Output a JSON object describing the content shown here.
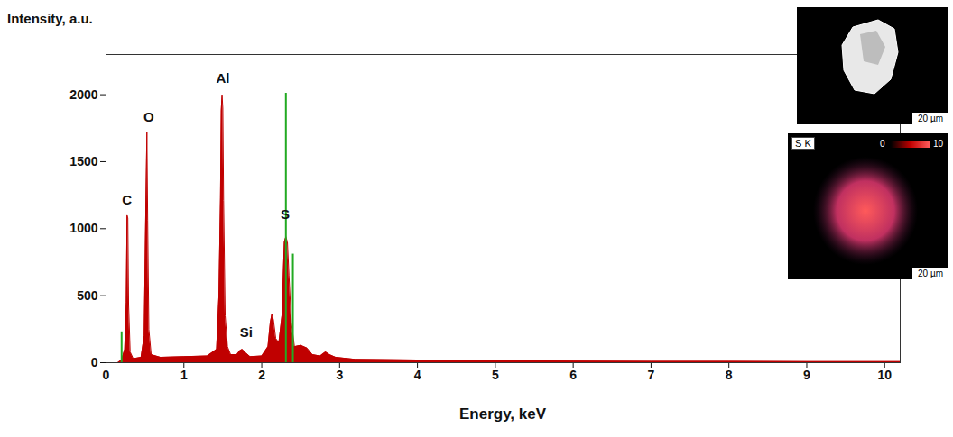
{
  "chart_data": {
    "type": "area",
    "y_label": "Intensity, a.u.",
    "x_label": "Energy, keV",
    "color": "#c00000",
    "x": [
      0.15,
      0.2,
      0.24,
      0.26,
      0.27,
      0.28,
      0.29,
      0.31,
      0.35,
      0.45,
      0.49,
      0.51,
      0.525,
      0.535,
      0.55,
      0.58,
      0.7,
      1.0,
      1.3,
      1.42,
      1.45,
      1.47,
      1.48,
      1.49,
      1.5,
      1.51,
      1.53,
      1.56,
      1.6,
      1.68,
      1.72,
      1.75,
      1.78,
      1.85,
      2.0,
      2.08,
      2.11,
      2.13,
      2.15,
      2.18,
      2.22,
      2.26,
      2.29,
      2.31,
      2.33,
      2.35,
      2.38,
      2.42,
      2.5,
      2.58,
      2.65,
      2.75,
      2.82,
      2.87,
      2.95,
      3.2,
      4,
      5,
      6,
      7,
      8,
      9,
      10,
      10.2
    ],
    "values": [
      0,
      20,
      100,
      450,
      1100,
      1080,
      430,
      80,
      30,
      40,
      200,
      1100,
      1720,
      1060,
      250,
      60,
      40,
      45,
      50,
      100,
      500,
      1230,
      1880,
      2000,
      1900,
      1210,
      350,
      120,
      60,
      60,
      90,
      100,
      80,
      45,
      50,
      120,
      300,
      360,
      320,
      180,
      150,
      350,
      900,
      940,
      900,
      650,
      300,
      120,
      130,
      110,
      60,
      50,
      80,
      60,
      40,
      25,
      20,
      15,
      12,
      10,
      10,
      8,
      8,
      8
    ],
    "markers": {
      "color": "#22aa22",
      "x": [
        0.2,
        2.31,
        2.4
      ],
      "values": [
        230,
        2010,
        810
      ]
    },
    "annotations": [
      {
        "text": "C",
        "x": 0.27,
        "y": 1180
      },
      {
        "text": "O",
        "x": 0.55,
        "y": 1800
      },
      {
        "text": "Al",
        "x": 1.5,
        "y": 2090
      },
      {
        "text": "Si",
        "x": 1.8,
        "y": 190
      },
      {
        "text": "S",
        "x": 2.3,
        "y": 1070
      }
    ],
    "xlim": [
      0,
      10.2
    ],
    "xticks": [
      0,
      1,
      2,
      3,
      4,
      5,
      6,
      7,
      8,
      9,
      10
    ],
    "ylim": [
      0,
      2300
    ],
    "yticks": [
      0,
      500,
      1000,
      1500,
      2000
    ],
    "grid": false,
    "insets": [
      {
        "type": "image",
        "scale_bar": "20 µm"
      },
      {
        "type": "map",
        "title": "S K",
        "colorbar_range": [
          0,
          10
        ],
        "scale_bar": "20 µm"
      }
    ]
  }
}
